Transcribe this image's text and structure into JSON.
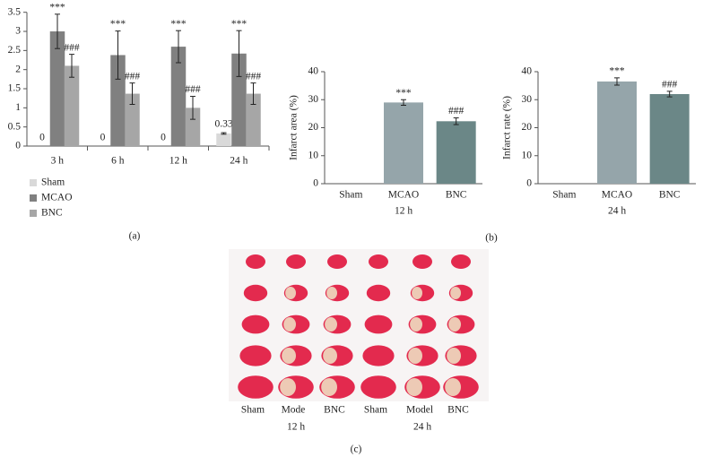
{
  "chart_data": [
    {
      "type": "grouped_bar",
      "panel_label": "(a)",
      "categories": [
        "3 h",
        "6 h",
        "12 h",
        "24 h"
      ],
      "series": [
        {
          "name": "Sham",
          "color": "#d9d9d9",
          "values": [
            0,
            0,
            0,
            0.33
          ],
          "errors": [
            0,
            0,
            0,
            0.02
          ]
        },
        {
          "name": "MCAO",
          "color": "#808080",
          "values": [
            3.0,
            2.38,
            2.6,
            2.42
          ],
          "errors": [
            0.45,
            0.63,
            0.42,
            0.6
          ],
          "annotation": "***"
        },
        {
          "name": "BNC",
          "color": "#a6a6a6",
          "values": [
            2.1,
            1.37,
            1.0,
            1.37
          ],
          "errors": [
            0.3,
            0.28,
            0.3,
            0.28
          ],
          "annotation": "###"
        }
      ],
      "ylim": [
        0,
        3.5
      ],
      "yticks": [
        0,
        0.5,
        1,
        1.5,
        2,
        2.5,
        3,
        3.5
      ]
    },
    {
      "type": "bar",
      "panel_label": "(b)",
      "ylabel": "Infarct area (%)",
      "xlabel": "12 h",
      "categories": [
        "Sham",
        "MCAO",
        "BNC"
      ],
      "values": [
        0,
        29,
        22.3
      ],
      "errors": [
        0,
        1,
        1.2
      ],
      "colors": [
        "#95a5aa",
        "#95a5aa",
        "#6b8787"
      ],
      "annotations": [
        null,
        "***",
        "###"
      ],
      "ylim": [
        0,
        40
      ],
      "yticks": [
        0,
        10,
        20,
        30,
        40
      ]
    },
    {
      "type": "bar",
      "ylabel": "Infarct rate (%)",
      "xlabel": "24 h",
      "categories": [
        "Sham",
        "MCAO",
        "BNC"
      ],
      "values": [
        0,
        36.5,
        32
      ],
      "errors": [
        0,
        1.3,
        1
      ],
      "colors": [
        "#95a5aa",
        "#95a5aa",
        "#6b8787"
      ],
      "annotations": [
        null,
        "***",
        "###"
      ],
      "ylim": [
        0,
        40
      ],
      "yticks": [
        0,
        10,
        20,
        30,
        40
      ]
    }
  ],
  "photo": {
    "columns": [
      "Sham",
      "Mode",
      "BNC",
      "Sham",
      "Model",
      "BNC"
    ],
    "groups": [
      "12 h",
      "24 h"
    ],
    "panel_label": "(c)"
  }
}
